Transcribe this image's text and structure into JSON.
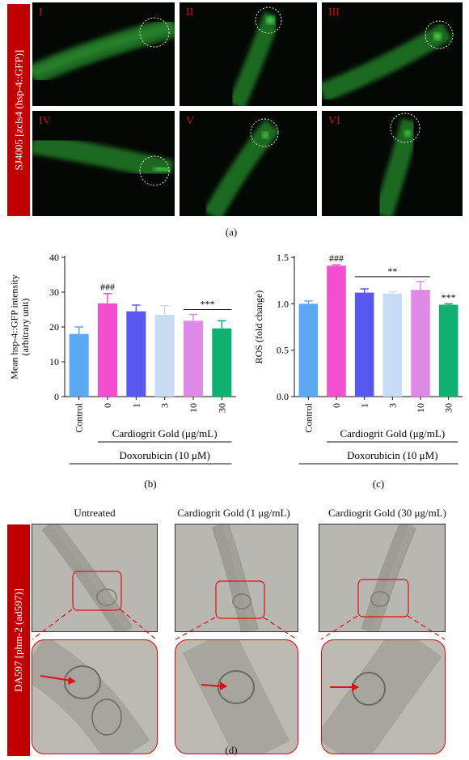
{
  "panel_a": {
    "strain_label": "SJ4005 [zcls4 (hsp-4::GFP)]",
    "tiles": [
      "I",
      "II",
      "III",
      "IV",
      "V",
      "VI"
    ],
    "caption": "(a)"
  },
  "panel_d": {
    "strain_label": "DA597 [phm-2 (ad597)]",
    "titles": [
      "Untreated",
      "Cardiogrit Gold (1 μg/mL)",
      "Cardiogrit Gold (30 μg/mL)"
    ],
    "caption": "(d)"
  },
  "colors": {
    "control": "#5aa9f2",
    "dox0": "#f24fd0",
    "dose1": "#5858f0",
    "dose3": "#c8dcf5",
    "dose10": "#e08ae8",
    "dose30": "#10b070",
    "strain_bar": "#c00000",
    "gfp": "#39c239",
    "arrow": "#e01010"
  },
  "chart_data": [
    {
      "type": "bar",
      "caption": "(b)",
      "ylabel": "Mean hsp-4::GFP intensity (arbitrary unit)",
      "ylim": [
        0,
        40
      ],
      "yticks": [
        "0",
        "10",
        "20",
        "30",
        "40"
      ],
      "categories": [
        "Control",
        "0",
        "1",
        "3",
        "10",
        "30"
      ],
      "values": [
        18,
        26.8,
        24.5,
        23.5,
        21.8,
        19.6
      ],
      "errors": [
        2,
        2.8,
        1.8,
        2.6,
        1.8,
        2.2
      ],
      "annotations": [
        {
          "text": "###",
          "category": "0"
        },
        {
          "text": "***",
          "from": "10",
          "to": "30"
        }
      ],
      "group_label_1": "Cardiogrit Gold (μg/mL)",
      "group_label_2": "Doxorubicin (10 μM)"
    },
    {
      "type": "bar",
      "caption": "(c)",
      "ylabel": "ROS (fold change)",
      "ylim": [
        0,
        1.5
      ],
      "yticks": [
        "0.0",
        "0.5",
        "1.0",
        "1.5"
      ],
      "categories": [
        "Control",
        "0",
        "1",
        "3",
        "10",
        "30"
      ],
      "values": [
        1.0,
        1.41,
        1.12,
        1.11,
        1.15,
        0.99
      ],
      "errors": [
        0.03,
        0.01,
        0.04,
        0.02,
        0.09,
        0.01
      ],
      "annotations": [
        {
          "text": "###",
          "category": "0"
        },
        {
          "text": "**",
          "from": "1",
          "to": "10"
        },
        {
          "text": "***",
          "category": "30"
        }
      ],
      "group_label_1": "Cardiogrit Gold (μg/mL)",
      "group_label_2": "Doxorubicin (10 μM)"
    }
  ]
}
